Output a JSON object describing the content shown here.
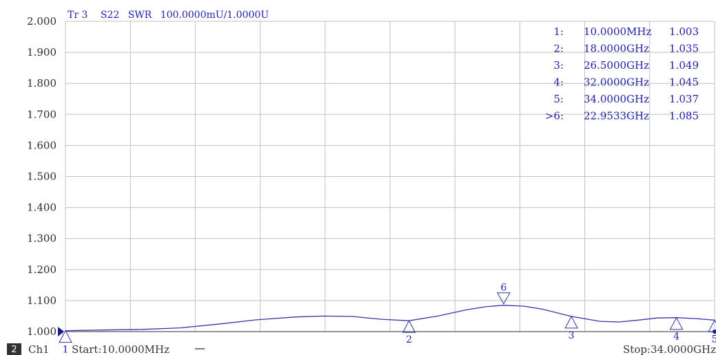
{
  "trace_title": {
    "tr": "Tr 3",
    "param": "S22",
    "format": "SWR",
    "scale": "100.0000mU/1.0000U"
  },
  "footer": {
    "channel_box": "2",
    "channel": "Ch1",
    "start": "Start:10.0000MHz",
    "stop": "Stop:34.0000GHz"
  },
  "colors": {
    "trace": "#3333aa",
    "grid": "#c0c0c0",
    "text": "#2020b0",
    "axis_text": "#2b2b2b",
    "channel_box": "#333333"
  },
  "marker_table": [
    {
      "id": "1:",
      "freq": "10.0000MHz",
      "value": "1.003",
      "active": false
    },
    {
      "id": "2:",
      "freq": "18.0000GHz",
      "value": "1.035",
      "active": false
    },
    {
      "id": "3:",
      "freq": "26.5000GHz",
      "value": "1.049",
      "active": false
    },
    {
      "id": "4:",
      "freq": "32.0000GHz",
      "value": "1.045",
      "active": false
    },
    {
      "id": "5:",
      "freq": "34.0000GHz",
      "value": "1.037",
      "active": false
    },
    {
      "id": ">6:",
      "freq": "22.9533GHz",
      "value": "1.085",
      "active": true
    }
  ],
  "chart_data": {
    "type": "line",
    "title": "Tr 3  S22 SWR 100.0000mU/1.0000U",
    "xlabel": "",
    "ylabel": "",
    "xlim": [
      0.01,
      34.0
    ],
    "x_unit": "GHz",
    "ylim": [
      1.0,
      2.0
    ],
    "yticks": [
      "2.000",
      "1.900",
      "1.800",
      "1.700",
      "1.600",
      "1.500",
      "1.400",
      "1.300",
      "1.200",
      "1.100",
      "1.000"
    ],
    "x_divisions": 10,
    "grid": true,
    "series": [
      {
        "x": [
          0.01,
          1.0,
          2.0,
          4.0,
          6.0,
          8.0,
          10.0,
          12.0,
          13.5,
          15.0,
          16.5,
          18.0,
          19.5,
          21.0,
          22.0,
          22.95,
          24.0,
          25.0,
          26.5,
          28.0,
          29.0,
          30.0,
          31.0,
          32.0,
          33.0,
          34.0
        ],
        "y": [
          1.003,
          1.004,
          1.005,
          1.007,
          1.012,
          1.024,
          1.038,
          1.047,
          1.05,
          1.049,
          1.04,
          1.035,
          1.05,
          1.07,
          1.08,
          1.085,
          1.082,
          1.072,
          1.049,
          1.033,
          1.031,
          1.037,
          1.044,
          1.045,
          1.042,
          1.037
        ]
      }
    ],
    "markers": [
      {
        "label": "1",
        "x": 0.01,
        "y": 1.003,
        "dir": "up"
      },
      {
        "label": "2",
        "x": 18.0,
        "y": 1.035,
        "dir": "up"
      },
      {
        "label": "3",
        "x": 26.5,
        "y": 1.049,
        "dir": "up"
      },
      {
        "label": "4",
        "x": 32.0,
        "y": 1.045,
        "dir": "up"
      },
      {
        "label": "5",
        "x": 34.0,
        "y": 1.037,
        "dir": "up"
      },
      {
        "label": "6",
        "x": 22.9533,
        "y": 1.085,
        "dir": "down"
      }
    ]
  }
}
